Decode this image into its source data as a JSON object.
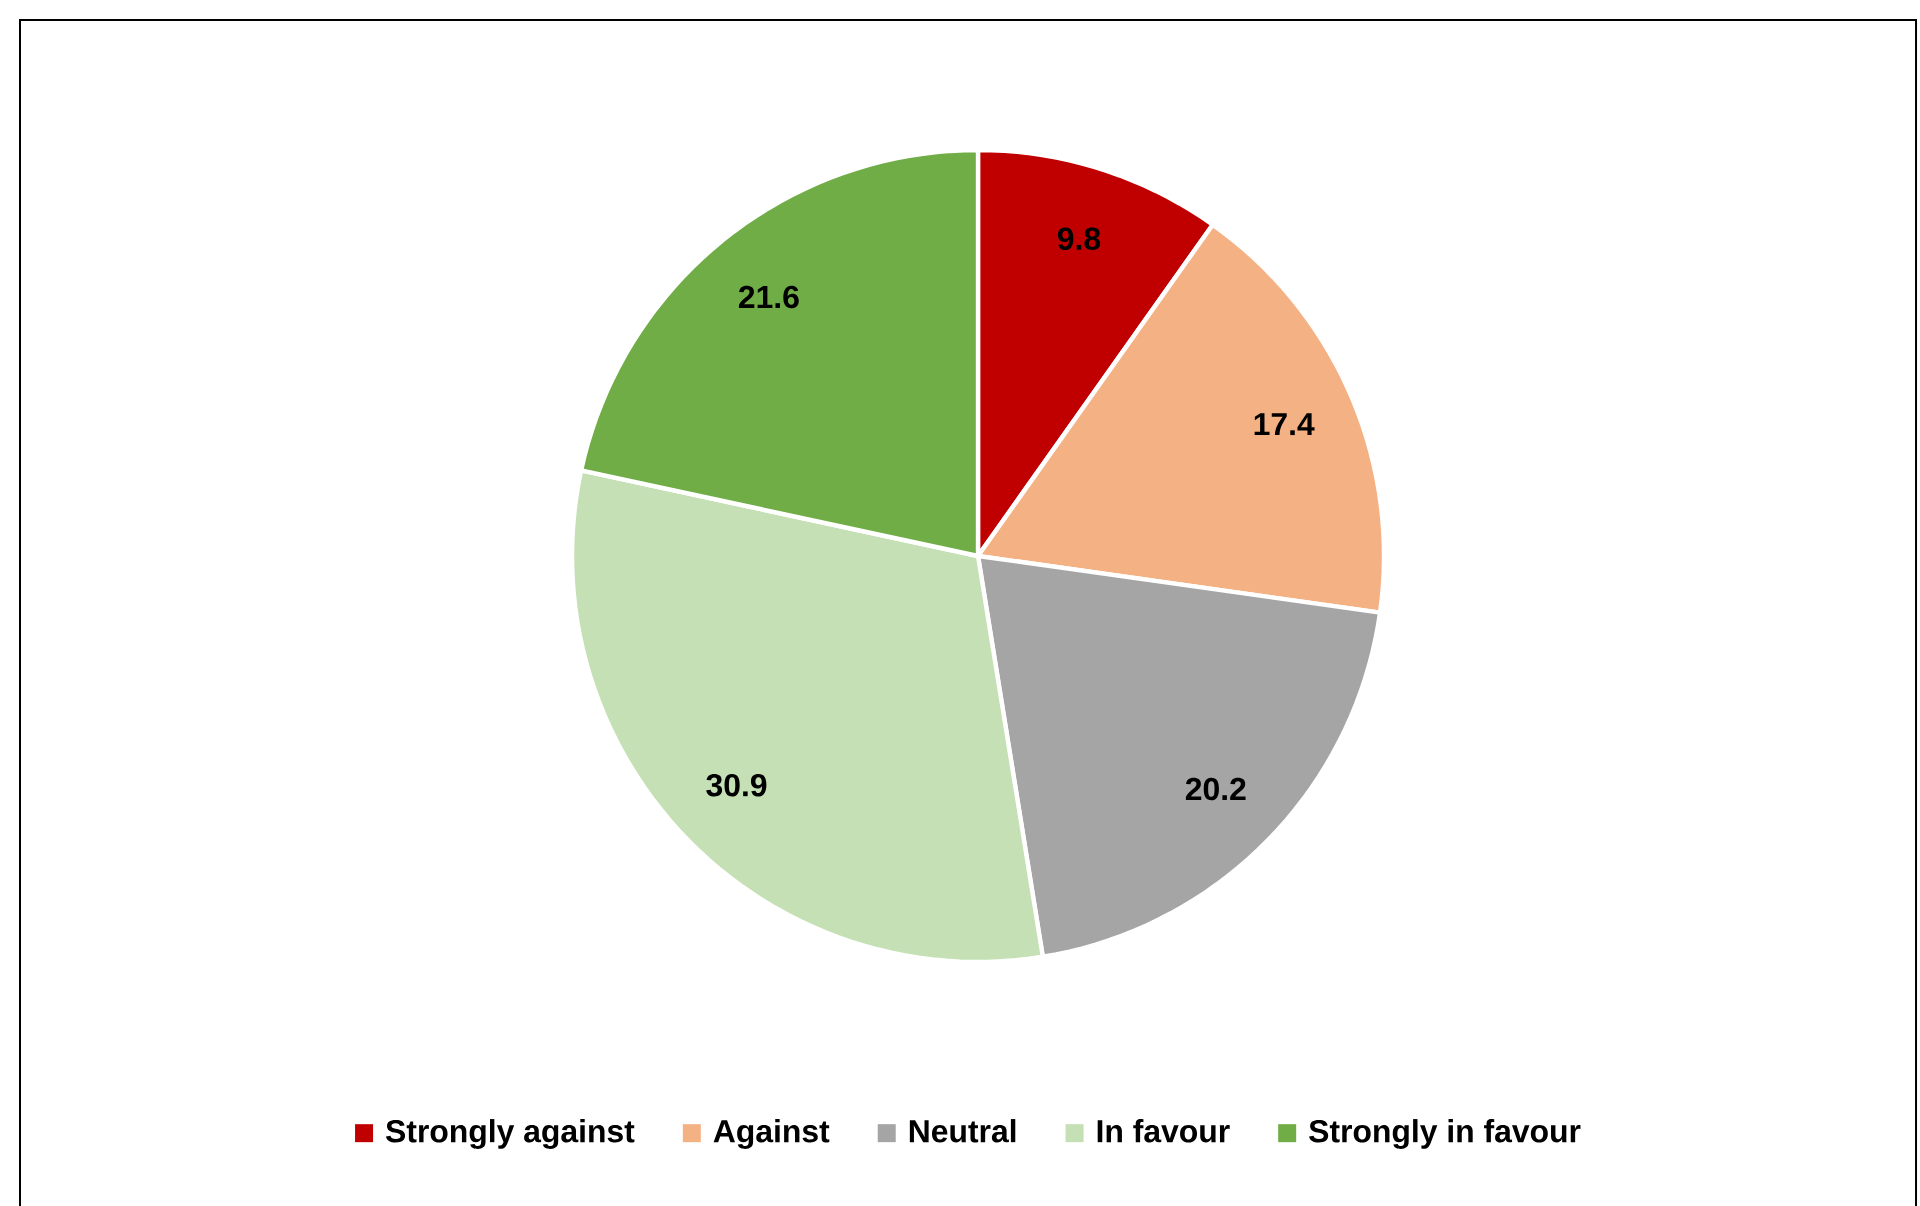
{
  "chart_data": {
    "type": "pie",
    "categories": [
      "Strongly against",
      "Against",
      "Neutral",
      "In favour",
      "Strongly in favour"
    ],
    "values": [
      9.8,
      17.4,
      20.2,
      30.9,
      21.6
    ],
    "colors": [
      "#c00000",
      "#f4b183",
      "#a5a5a5",
      "#c5e0b4",
      "#70ad47"
    ],
    "data_labels": true,
    "legend": "bottom"
  }
}
